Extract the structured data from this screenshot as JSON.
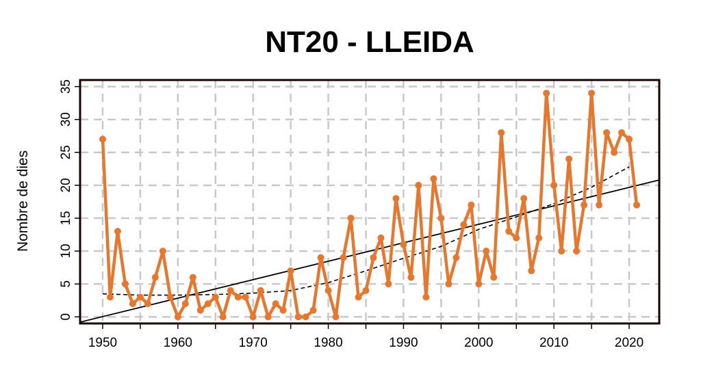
{
  "chart_data": {
    "type": "line",
    "title": "NT20 - LLEIDA",
    "xlabel": "",
    "ylabel": "Nombre de dies",
    "xlim": [
      1947,
      2024
    ],
    "ylim": [
      -1,
      36
    ],
    "x_ticks": [
      1950,
      1960,
      1970,
      1980,
      1990,
      2000,
      2010,
      2020
    ],
    "y_ticks": [
      0,
      5,
      10,
      15,
      20,
      25,
      30,
      35
    ],
    "grid": true,
    "colors": {
      "series": "#e8772e",
      "trend": "#000000",
      "frame": "#1a0000",
      "grid": "#c8c8c8"
    },
    "series": [
      {
        "name": "NT20",
        "x": [
          1950,
          1951,
          1952,
          1953,
          1954,
          1955,
          1956,
          1957,
          1958,
          1959,
          1960,
          1961,
          1962,
          1963,
          1964,
          1965,
          1966,
          1967,
          1968,
          1969,
          1970,
          1971,
          1972,
          1973,
          1974,
          1975,
          1976,
          1977,
          1978,
          1979,
          1980,
          1981,
          1982,
          1983,
          1984,
          1985,
          1986,
          1987,
          1988,
          1989,
          1990,
          1991,
          1992,
          1993,
          1994,
          1995,
          1996,
          1997,
          1998,
          1999,
          2000,
          2001,
          2002,
          2003,
          2004,
          2005,
          2006,
          2007,
          2008,
          2009,
          2010,
          2011,
          2012,
          2013,
          2014,
          2015,
          2016,
          2017,
          2018,
          2019,
          2020,
          2021
        ],
        "values": [
          27,
          3,
          13,
          5,
          2,
          3,
          2,
          6,
          10,
          3,
          0,
          2,
          6,
          1,
          2,
          3,
          0,
          4,
          3,
          3,
          0,
          4,
          0,
          2,
          1,
          7,
          0,
          0,
          1,
          9,
          4,
          0,
          9,
          15,
          3,
          4,
          9,
          12,
          5,
          18,
          11,
          6,
          20,
          3,
          21,
          15,
          5,
          9,
          14,
          17,
          5,
          10,
          6,
          28,
          13,
          12,
          18,
          7,
          12,
          34,
          20,
          10,
          24,
          10,
          17,
          34,
          17,
          28,
          25,
          28,
          27,
          17
        ]
      }
    ],
    "trend_line": {
      "name": "linear trend",
      "x": [
        1947,
        2024
      ],
      "y": [
        -0.8,
        20.8
      ]
    },
    "smooth_curve": {
      "name": "smoothed",
      "x": [
        1950,
        1955,
        1960,
        1965,
        1970,
        1975,
        1980,
        1985,
        1990,
        1995,
        2000,
        2005,
        2010,
        2015,
        2020
      ],
      "y": [
        3.5,
        3.3,
        3.3,
        3.4,
        3.6,
        4.0,
        5.2,
        7.0,
        8.9,
        10.7,
        13.3,
        15.2,
        17.2,
        19.7,
        22.8
      ]
    }
  }
}
